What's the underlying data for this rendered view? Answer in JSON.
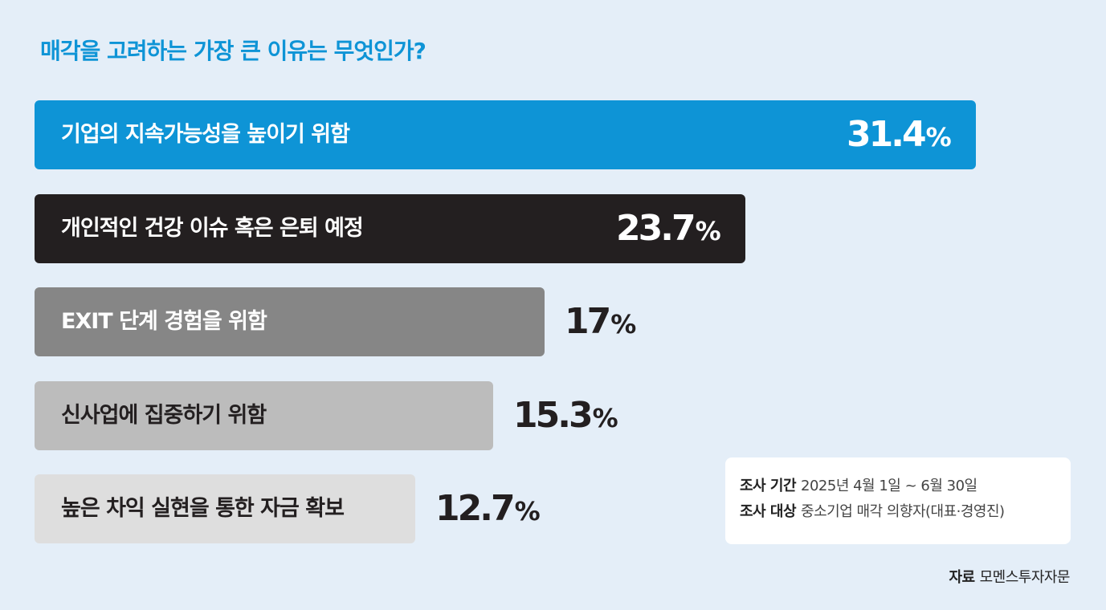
{
  "chart_data": {
    "type": "bar",
    "orientation": "horizontal",
    "title": "매각을 고려하는 가장 큰 이유는 무엇인가?",
    "categories": [
      "기업의 지속가능성을 높이기 위함",
      "개인적인 건강 이슈 혹은 은퇴 예정",
      "EXIT 단계 경험을 위함",
      "신사업에 집중하기 위함",
      "높은 차익 실현을 통한 자금 확보"
    ],
    "values": [
      31.4,
      23.7,
      17,
      15.3,
      12.7
    ],
    "value_labels": [
      "31.4",
      "23.7",
      "17",
      "15.3",
      "12.7"
    ],
    "unit": "%",
    "colors": [
      "#0e94d6",
      "#231f20",
      "#868686",
      "#bcbcbc",
      "#dedede"
    ],
    "label_colors": [
      "#ffffff",
      "#ffffff",
      "#ffffff",
      "#231f20",
      "#231f20"
    ],
    "value_inside": [
      true,
      true,
      false,
      false,
      false
    ]
  },
  "notes": {
    "survey_period_label": "조사 기간",
    "survey_period_value": "2025년 4월 1일 ~ 6월 30일",
    "survey_target_label": "조사 대상",
    "survey_target_value": "중소기업 매각 의향자(대표·경영진)"
  },
  "source": {
    "label": "자료",
    "value": "모멘스투자자문"
  }
}
